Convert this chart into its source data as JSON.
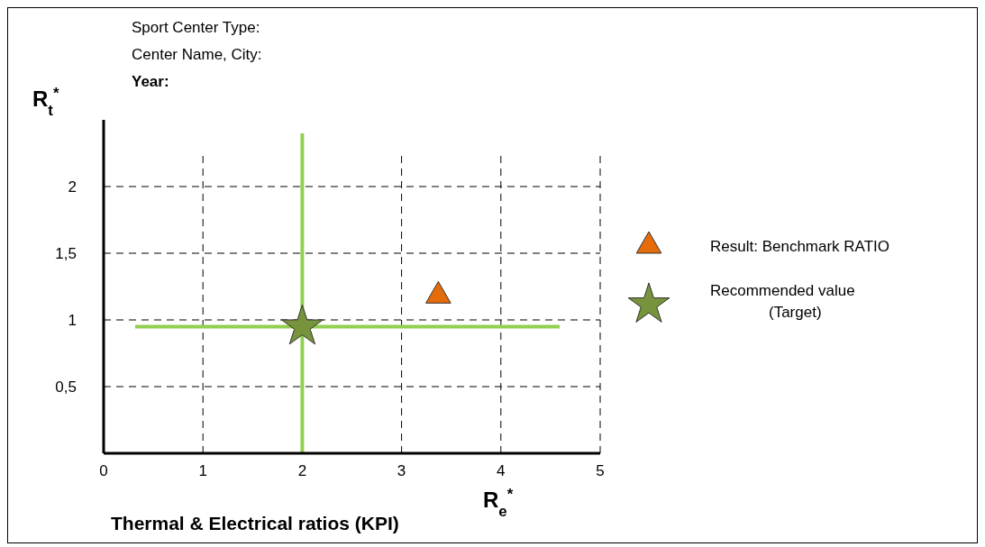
{
  "chart_data": {
    "type": "scatter",
    "title": "Thermal & Electrical ratios (KPI)",
    "xlabel": "R$_{e}$$^{*}$",
    "ylabel": "R$_{t}$$^{*}$",
    "annotations": [
      "Sport Center Type:",
      "Center Name, City:",
      "Year:"
    ],
    "xlim": [
      0,
      5
    ],
    "ylim": [
      0,
      2.5
    ],
    "xticks": [
      0,
      1,
      2,
      3,
      4,
      5
    ],
    "yticks": [
      {
        "value": 0.5,
        "label": "0,5"
      },
      {
        "value": 1,
        "label": "1"
      },
      {
        "value": 1.5,
        "label": "1,5"
      },
      {
        "value": 2,
        "label": "2"
      }
    ],
    "grid": true,
    "legend": "right",
    "series": [
      {
        "name": "Result: Benchmark RATIO",
        "color": "#e46c0a",
        "marker": "triangle",
        "x": [
          3.37
        ],
        "values": [
          1.18
        ]
      },
      {
        "name": "Recommended value (Target)",
        "color": "#77933c",
        "marker": "star",
        "x": [
          2
        ],
        "values": [
          0.95
        ]
      }
    ],
    "ref_lines": [
      {
        "axis": "x",
        "value": 2,
        "color": "#92d050"
      },
      {
        "axis": "y",
        "value": 0.95,
        "color": "#92d050"
      }
    ]
  }
}
